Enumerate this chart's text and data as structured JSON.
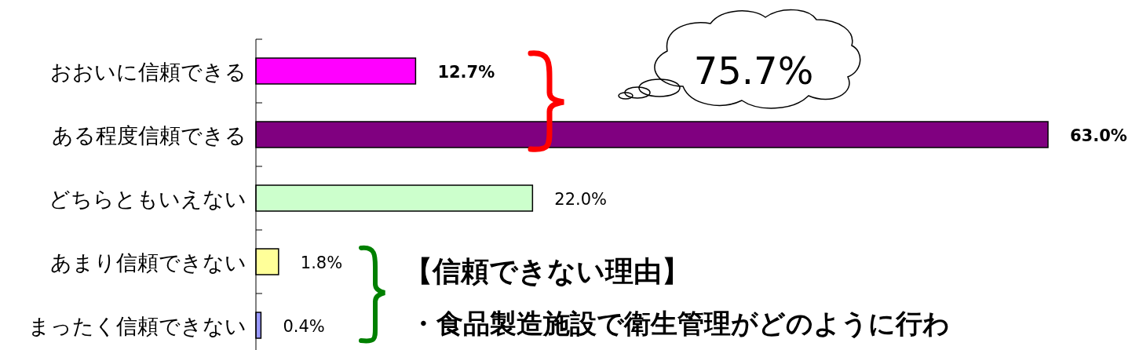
{
  "chart_data": {
    "type": "bar",
    "orientation": "horizontal",
    "categories": [
      "おおいに信頼できる",
      "ある程度信頼できる",
      "どちらともいえない",
      "あまり信頼できない",
      "まったく信頼できない"
    ],
    "values": [
      12.7,
      63.0,
      22.0,
      1.8,
      0.4
    ],
    "colors": [
      "#ff00ff",
      "#800080",
      "#ccffcc",
      "#ffff99",
      "#9999ff"
    ],
    "value_labels": [
      "12.7%",
      "63.0%",
      "22.0%",
      "1.8%",
      "0.4%"
    ],
    "xlim": [
      0,
      63
    ],
    "tick_labels": "y",
    "grid": false,
    "annotations": [
      "75.7%",
      "【信頼できない理由】",
      "・食品製造施設で衛生管理がどのように行わ"
    ]
  }
}
